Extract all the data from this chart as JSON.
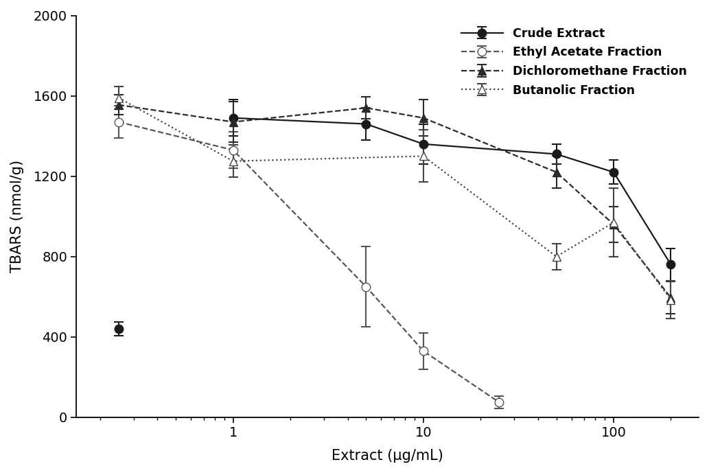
{
  "crude_extract": {
    "x_isolated": [
      0.25
    ],
    "y_isolated": [
      440
    ],
    "yerr_isolated": [
      35
    ],
    "x": [
      1,
      5,
      10,
      50,
      100,
      200
    ],
    "y": [
      1490,
      1460,
      1360,
      1310,
      1220,
      760
    ],
    "yerr": [
      90,
      80,
      100,
      50,
      60,
      80
    ],
    "label": "Crude Extract",
    "color": "#1a1a1a",
    "linestyle": "-",
    "marker": "o",
    "markerfacecolor": "#1a1a1a",
    "markersize": 9
  },
  "ethyl_acetate": {
    "x": [
      0.25,
      1,
      5,
      10,
      25
    ],
    "y": [
      1470,
      1330,
      650,
      330,
      75
    ],
    "yerr": [
      80,
      90,
      200,
      90,
      30
    ],
    "label": "Ethyl Acetate Fraction",
    "color": "#555555",
    "linestyle": "--",
    "marker": "o",
    "markerfacecolor": "white",
    "markersize": 9
  },
  "dichloromethane": {
    "x": [
      0.25,
      1,
      5,
      10,
      50,
      100,
      200
    ],
    "y": [
      1555,
      1470,
      1540,
      1490,
      1220,
      960,
      595
    ],
    "yerr": [
      50,
      100,
      55,
      90,
      80,
      90,
      80
    ],
    "label": "Dichloromethane Fraction",
    "color": "#2a2a2a",
    "linestyle": "--",
    "marker": "^",
    "markerfacecolor": "#2a2a2a",
    "markersize": 9
  },
  "butanolic": {
    "x": [
      0.25,
      1,
      10,
      50,
      100,
      200
    ],
    "y": [
      1590,
      1275,
      1300,
      800,
      970,
      585
    ],
    "yerr": [
      55,
      80,
      130,
      65,
      170,
      95
    ],
    "label": "Butanolic Fraction",
    "color": "#444444",
    "linestyle": ":",
    "marker": "^",
    "markerfacecolor": "white",
    "markersize": 9
  },
  "xlabel": "Extract (μg/mL)",
  "ylabel": "TBARS (nmol/g)",
  "ylim": [
    0,
    2000
  ],
  "yticks": [
    0,
    400,
    800,
    1200,
    1600,
    2000
  ],
  "xlim": [
    0.15,
    280
  ],
  "background_color": "#ffffff"
}
